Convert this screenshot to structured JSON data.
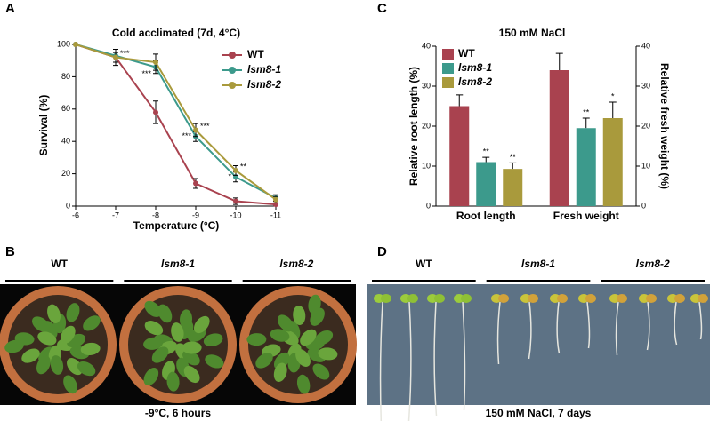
{
  "chart_data": [
    {
      "panel": "A",
      "type": "line",
      "title": "Cold acclimated (7d, 4°C)",
      "x_label": "Temperature (°C)",
      "y_label": "Survival (%)",
      "x": [
        -6,
        -7,
        -8,
        -9,
        -10,
        -11
      ],
      "xlim": [
        -6,
        -11
      ],
      "xticks": [
        -6,
        -7,
        -8,
        -9,
        -10,
        -11
      ],
      "ylim": [
        0,
        100
      ],
      "yticks": [
        0,
        20,
        40,
        60,
        80,
        100
      ],
      "series": [
        {
          "name": "WT",
          "color": "#a9424f",
          "values": [
            100,
            92,
            58,
            14,
            3,
            1
          ],
          "errors": [
            0,
            5,
            7,
            3,
            2,
            1
          ],
          "significance": [
            null,
            null,
            null,
            null,
            null,
            null
          ]
        },
        {
          "name": "lsm8-1",
          "color": "#3c9a8c",
          "values": [
            100,
            93,
            86,
            43,
            18,
            5
          ],
          "errors": [
            0,
            4,
            4,
            3,
            3,
            2
          ],
          "significance": [
            null,
            null,
            "***",
            "***",
            "*",
            null
          ]
        },
        {
          "name": "lsm8-2",
          "color": "#a99a3c",
          "values": [
            100,
            92,
            89,
            47,
            22,
            4
          ],
          "errors": [
            0,
            3,
            5,
            4,
            3,
            2
          ],
          "significance": [
            null,
            "***",
            null,
            "***",
            "**",
            null
          ]
        }
      ]
    },
    {
      "panel": "C",
      "type": "bar",
      "title": "150 mM NaCl",
      "y_label": "Relative root length (%)",
      "y2_label": "Relative fresh weight (%)",
      "categories": [
        "Root length",
        "Fresh weight"
      ],
      "ylim": [
        0,
        40
      ],
      "yticks": [
        0,
        10,
        20,
        30,
        40
      ],
      "y2lim": [
        0,
        40
      ],
      "y2ticks": [
        0,
        10,
        20,
        30,
        40
      ],
      "series": [
        {
          "name": "WT",
          "color": "#a9424f",
          "values": [
            25,
            34
          ],
          "errors": [
            2.8,
            4.2
          ],
          "significance": [
            null,
            null
          ]
        },
        {
          "name": "lsm8-1",
          "color": "#3c9a8c",
          "values": [
            11,
            19.5
          ],
          "errors": [
            1.2,
            2.5
          ],
          "significance": [
            "**",
            "**"
          ]
        },
        {
          "name": "lsm8-2",
          "color": "#a99a3c",
          "values": [
            9.3,
            22
          ],
          "errors": [
            1.5,
            4
          ],
          "significance": [
            "**",
            "*"
          ]
        }
      ]
    }
  ],
  "photos": [
    {
      "panel": "B",
      "groups": [
        "WT",
        "lsm8-1",
        "lsm8-2"
      ],
      "caption": "-9°C, 6 hours"
    },
    {
      "panel": "D",
      "groups": [
        "WT",
        "lsm8-1",
        "lsm8-2"
      ],
      "caption": "150 mM NaCl, 7 days"
    }
  ]
}
